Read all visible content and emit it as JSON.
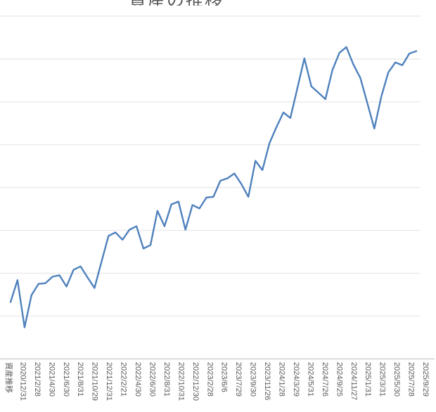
{
  "chart_data": {
    "type": "line",
    "title_clipped": "資産の推移",
    "x_axis": {
      "tick_labels": [
        "資産推移",
        "2020/12/31",
        "2021/2/28",
        "2021/4/30",
        "2021/6/30",
        "2021/8/31",
        "2021/10/29",
        "2021/12/31",
        "2022/2/21",
        "2022/4/30",
        "2022/6/30",
        "2022/8/31",
        "2022/10/31",
        "2022/12/30",
        "2023/2/28",
        "2023/6/6",
        "2023/7/29",
        "2023/9/30",
        "2023/11/26",
        "2024/1/28",
        "2024/3/29",
        "2024/5/31",
        "2024/7/26",
        "2024/9/25",
        "2024/11/27",
        "2025/1/31",
        "2025/3/31",
        "2025/5/30",
        "2025/7/28",
        "2025/9/29"
      ],
      "label_rotation_deg": 90,
      "labels_per_point": "every 2nd data point"
    },
    "y_axis": {
      "labels_visible": false,
      "gridline_count": 9,
      "ylim": [
        0,
        100
      ]
    },
    "series": [
      {
        "color": "#4F81BD",
        "values": [
          16.6,
          23.0,
          9.2,
          18.6,
          21.9,
          22.1,
          24.0,
          24.4,
          21.1,
          26.0,
          27.0,
          23.8,
          20.7,
          28.3,
          35.9,
          36.9,
          34.8,
          37.7,
          38.7,
          32.2,
          33.2,
          43.2,
          38.7,
          45.1,
          45.9,
          37.7,
          44.9,
          43.9,
          47.1,
          47.3,
          52.0,
          52.7,
          54.1,
          51.0,
          47.3,
          57.8,
          55.1,
          62.9,
          67.6,
          71.9,
          70.3,
          79.0,
          87.7,
          79.5,
          77.7,
          75.8,
          84.2,
          89.3,
          91.0,
          85.9,
          82.0,
          74.6,
          67.2,
          76.6,
          83.6,
          86.5,
          85.7,
          89.1,
          89.8
        ]
      }
    ],
    "colors": {
      "line": "#4F81BD",
      "gridline": "#E2E2E2",
      "axis_line": "#C6C6C6",
      "tick_label_text": "#595959",
      "background": "#FFFFFF"
    },
    "grid": "horizontal only",
    "legend": "none"
  }
}
